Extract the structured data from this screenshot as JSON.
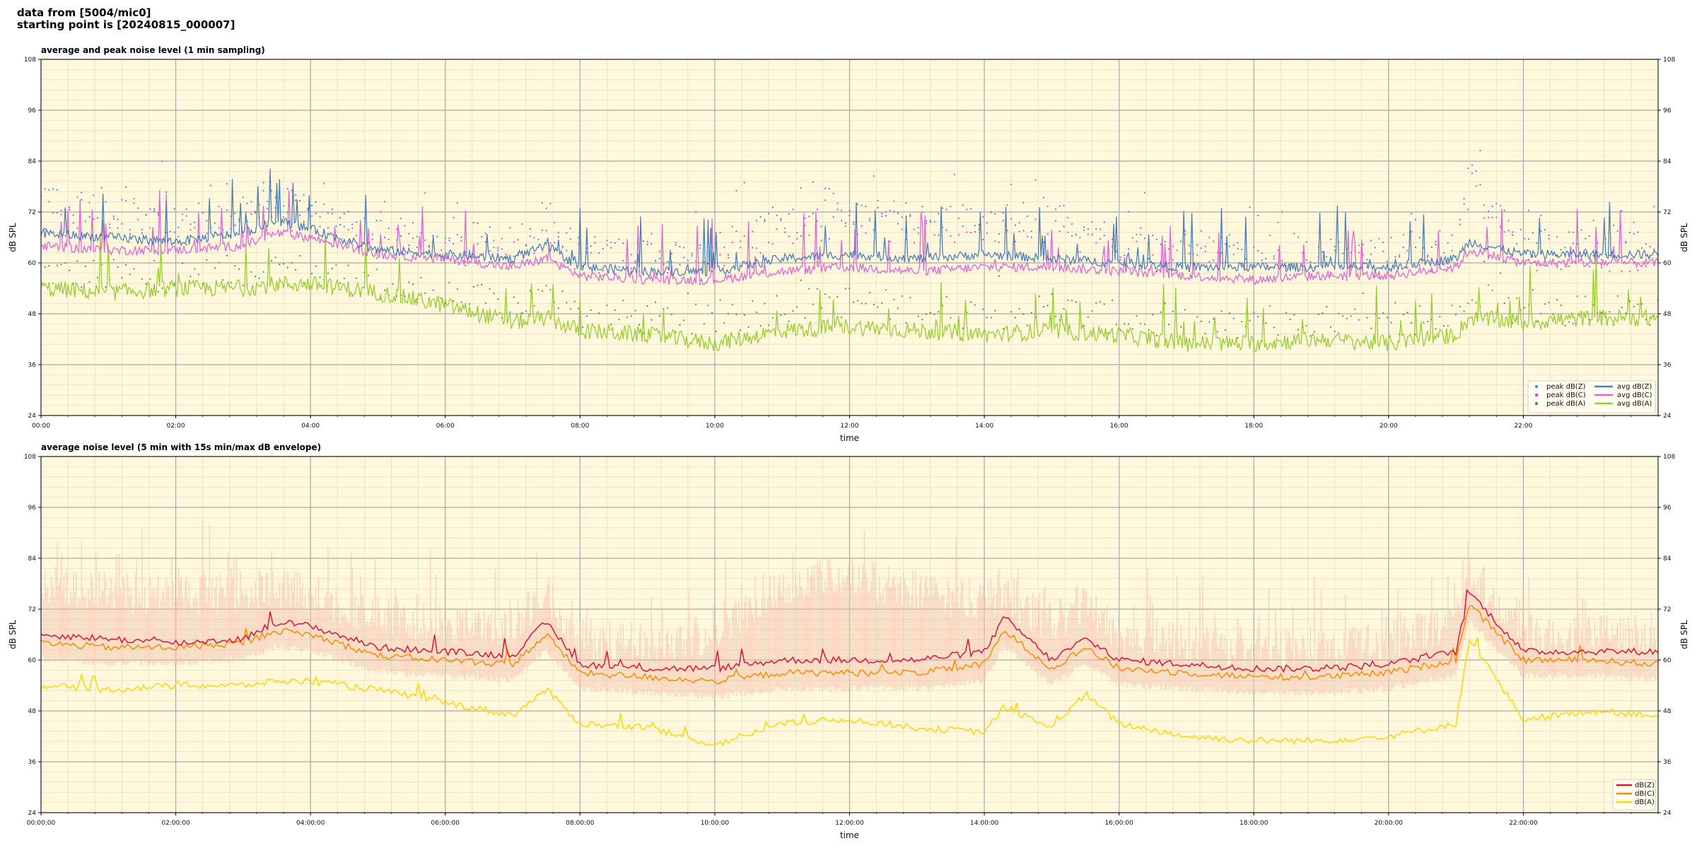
{
  "header": {
    "line1": "data from [5004/mic0]",
    "line2": "starting point is [20240815_000007]"
  },
  "colors": {
    "plot_bg": "#fff8dc",
    "peak_z": "#3b8fd6",
    "peak_c": "#e040d0",
    "peak_a": "#3c9a3c",
    "avg_z": "#4f7fb8",
    "avg_c": "#e066d6",
    "avg_a": "#9acd32",
    "env_z": "#dc143c",
    "env_c": "#ff8c00",
    "env_a": "#ffd700",
    "envelope": "#f6b8a8"
  },
  "chart_data": [
    {
      "type": "line",
      "title": "average and peak noise level (1 min sampling)",
      "xlabel": "time",
      "ylabel": "dB SPL",
      "ylim": [
        24,
        108
      ],
      "yticks": [
        "24",
        "36",
        "48",
        "60",
        "72",
        "84",
        "96",
        "108"
      ],
      "xlim_hours": [
        0,
        24
      ],
      "xticks": [
        "00:00",
        "02:00",
        "04:00",
        "06:00",
        "08:00",
        "10:00",
        "12:00",
        "14:00",
        "16:00",
        "18:00",
        "20:00",
        "22:00"
      ],
      "grid": true,
      "legend_position": "bottom-right",
      "legend": [
        "peak dB(Z)",
        "peak dB(C)",
        "peak dB(A)",
        "avg dB(Z)",
        "avg dB(C)",
        "avg dB(A)"
      ],
      "x_hours": [
        0,
        1,
        2,
        3,
        3.5,
        4,
        5,
        6,
        7,
        7.5,
        8,
        9,
        10,
        11,
        12,
        13,
        14,
        15,
        16,
        17,
        18,
        19,
        20,
        21,
        21.2,
        22,
        23,
        24
      ],
      "series": [
        {
          "name": "avg dB(Z)",
          "style": "line",
          "values": [
            67,
            66,
            65,
            67,
            70,
            68,
            63,
            62,
            61,
            64,
            59,
            58,
            58,
            61,
            62,
            61,
            62,
            61,
            60,
            59,
            59,
            59,
            59,
            61,
            65,
            62,
            62,
            62
          ]
        },
        {
          "name": "avg dB(C)",
          "style": "line",
          "values": [
            64,
            63,
            63,
            64,
            67,
            66,
            62,
            61,
            59,
            61,
            57,
            56,
            56,
            58,
            59,
            58,
            59,
            59,
            58,
            57,
            56,
            57,
            57,
            59,
            63,
            60,
            60,
            60
          ]
        },
        {
          "name": "avg dB(A)",
          "style": "line",
          "values": [
            54,
            53,
            54,
            54,
            55,
            55,
            53,
            50,
            46,
            47,
            44,
            43,
            41,
            44,
            45,
            44,
            43,
            44,
            43,
            41,
            41,
            42,
            41,
            43,
            47,
            46,
            47,
            47
          ]
        },
        {
          "name": "peak dB(Z)",
          "style": "scatter",
          "values": [
            74,
            72,
            71,
            72,
            74,
            73,
            67,
            66,
            65,
            70,
            63,
            63,
            64,
            70,
            72,
            70,
            70,
            71,
            65,
            63,
            63,
            62,
            62,
            65,
            80,
            64,
            64,
            64
          ]
        },
        {
          "name": "peak dB(C)",
          "style": "scatter",
          "values": [
            71,
            69,
            69,
            70,
            72,
            71,
            65,
            64,
            63,
            67,
            61,
            61,
            62,
            68,
            70,
            68,
            68,
            69,
            63,
            61,
            61,
            60,
            60,
            63,
            78,
            62,
            62,
            62
          ]
        },
        {
          "name": "peak dB(A)",
          "style": "scatter",
          "values": [
            58,
            57,
            57,
            58,
            59,
            58,
            55,
            52,
            50,
            52,
            48,
            47,
            46,
            50,
            51,
            49,
            48,
            49,
            47,
            45,
            45,
            46,
            45,
            47,
            55,
            48,
            49,
            49
          ]
        }
      ]
    },
    {
      "type": "line",
      "title": "average noise level (5 min with 15s min/max dB envelope)",
      "xlabel": "time",
      "ylabel": "dB SPL",
      "ylim": [
        24,
        108
      ],
      "yticks": [
        "24",
        "36",
        "48",
        "60",
        "72",
        "84",
        "96",
        "108"
      ],
      "xlim_hours": [
        0,
        24
      ],
      "xticks": [
        "00:00:00",
        "02:00:00",
        "04:00:00",
        "06:00:00",
        "08:00:00",
        "10:00:00",
        "12:00:00",
        "14:00:00",
        "16:00:00",
        "18:00:00",
        "20:00:00",
        "22:00:00"
      ],
      "grid": true,
      "legend_position": "bottom-right",
      "legend": [
        "dB(Z)",
        "dB(C)",
        "dB(A)"
      ],
      "x_hours": [
        0,
        1,
        2,
        3,
        3.5,
        4,
        5,
        6,
        7,
        7.5,
        8,
        9,
        10,
        11,
        12,
        13,
        14,
        14.3,
        15,
        15.5,
        16,
        17,
        18,
        19,
        20,
        21,
        21.2,
        22,
        23,
        24
      ],
      "envelope_upper": [
        76,
        74,
        73,
        74,
        75,
        74,
        68,
        66,
        66,
        74,
        63,
        62,
        64,
        76,
        78,
        74,
        72,
        74,
        66,
        72,
        64,
        62,
        61,
        61,
        62,
        68,
        80,
        64,
        64,
        64
      ],
      "series": [
        {
          "name": "dB(Z)",
          "values": [
            66,
            65,
            64,
            65,
            69,
            68,
            63,
            62,
            61,
            69,
            59,
            58,
            58,
            60,
            60,
            60,
            62,
            70,
            60,
            65,
            60,
            59,
            58,
            58,
            59,
            62,
            76,
            62,
            62,
            62
          ]
        },
        {
          "name": "dB(C)",
          "values": [
            64,
            63,
            63,
            64,
            67,
            66,
            61,
            60,
            59,
            66,
            57,
            56,
            55,
            57,
            57,
            57,
            59,
            67,
            58,
            63,
            58,
            57,
            56,
            56,
            57,
            60,
            73,
            60,
            60,
            59
          ]
        },
        {
          "name": "dB(A)",
          "values": [
            54,
            53,
            54,
            54,
            55,
            55,
            53,
            50,
            47,
            53,
            45,
            44,
            40,
            45,
            46,
            44,
            43,
            49,
            44,
            52,
            45,
            42,
            41,
            41,
            42,
            45,
            65,
            46,
            48,
            47
          ]
        }
      ]
    }
  ]
}
